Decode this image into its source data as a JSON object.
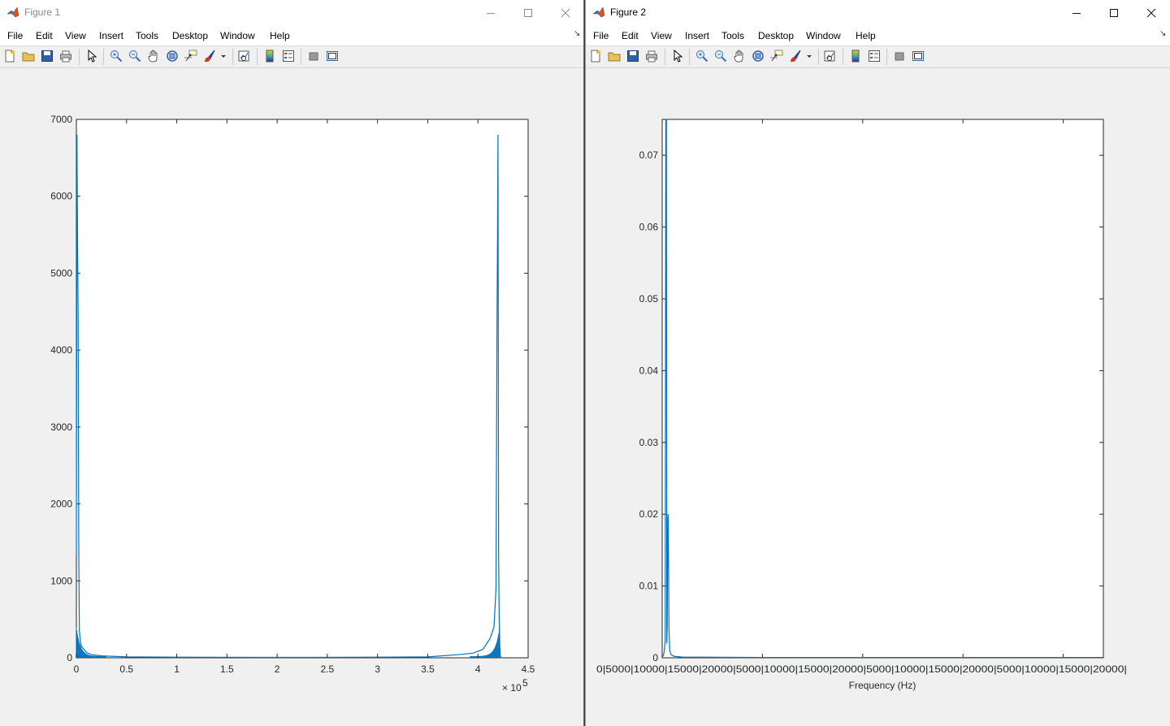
{
  "windows": [
    {
      "title": "Figure 1",
      "menu": [
        "File",
        "Edit",
        "View",
        "Insert",
        "Tools",
        "Desktop",
        "Window",
        "Help"
      ],
      "toolbar_icons": [
        "new-figure-icon",
        "open-file-icon",
        "save-icon",
        "print-icon",
        "edit-plot-icon",
        "zoom-in-icon",
        "zoom-out-icon",
        "pan-icon",
        "rotate-3d-icon",
        "data-cursor-icon",
        "brush-icon",
        "brush-dropdown-icon",
        "link-plot-icon",
        "colorbar-icon",
        "legend-icon",
        "hide-plot-tools-icon",
        "show-plot-tools-icon"
      ],
      "state": "inactive"
    },
    {
      "title": "Figure 2",
      "menu": [
        "File",
        "Edit",
        "View",
        "Insert",
        "Tools",
        "Desktop",
        "Window",
        "Help"
      ],
      "toolbar_icons": [
        "new-figure-icon",
        "open-file-icon",
        "save-icon",
        "print-icon",
        "edit-plot-icon",
        "zoom-in-icon",
        "zoom-out-icon",
        "pan-icon",
        "rotate-3d-icon",
        "data-cursor-icon",
        "brush-icon",
        "brush-dropdown-icon",
        "link-plot-icon",
        "colorbar-icon",
        "legend-icon",
        "hide-plot-tools-icon",
        "show-plot-tools-icon"
      ],
      "state": "active"
    }
  ],
  "colors": {
    "line": "#0072bd",
    "axes": "#262626",
    "figure_bg": "#f0f0f0"
  },
  "chart_data": [
    {
      "type": "line",
      "title": "",
      "xlabel": "",
      "ylabel": "",
      "xlim": [
        0,
        450000
      ],
      "ylim": [
        0,
        7000
      ],
      "x_tick_values": [
        0,
        50000,
        100000,
        150000,
        200000,
        250000,
        300000,
        350000,
        400000,
        450000
      ],
      "x_tick_labels": [
        "0",
        "0.5",
        "1",
        "1.5",
        "2",
        "2.5",
        "3",
        "3.5",
        "4",
        "4.5"
      ],
      "x_exponent_label": "× 10",
      "x_exponent_power": "5",
      "y_tick_values": [
        0,
        1000,
        2000,
        3000,
        4000,
        5000,
        6000,
        7000
      ],
      "y_tick_labels": [
        "0",
        "1000",
        "2000",
        "3000",
        "4000",
        "5000",
        "6000",
        "7000"
      ],
      "grid": false,
      "series": [
        {
          "x": [
            0,
            600,
            1200,
            1800,
            2400,
            3000,
            4000,
            5000,
            7000,
            10000,
            15000,
            25000,
            50000,
            100000,
            200000,
            300000,
            350000,
            380000,
            395000,
            405000,
            412000,
            416000,
            418000,
            419000,
            419500,
            420000,
            420600,
            421200,
            421800,
            422400,
            423200
          ],
          "y": [
            1320,
            6800,
            5400,
            4350,
            1300,
            350,
            210,
            150,
            120,
            70,
            40,
            25,
            12,
            8,
            5,
            8,
            12,
            40,
            60,
            110,
            250,
            400,
            900,
            4350,
            5400,
            6800,
            1320,
            500,
            150,
            20,
            0
          ]
        }
      ]
    },
    {
      "type": "line",
      "title": "",
      "xlabel": "Frequency (Hz)",
      "ylabel": "",
      "xlim": [
        0,
        440000
      ],
      "ylim": [
        0,
        0.075
      ],
      "x_tick_labels_text": "0|5000|10000|15000|20000|5000|10000|15000|20000|5000|10000|15000|20000|5000|10000|15000|20000|",
      "y_tick_values": [
        0,
        0.01,
        0.02,
        0.03,
        0.04,
        0.05,
        0.06,
        0.07
      ],
      "y_tick_labels": [
        "0",
        "0.01",
        "0.02",
        "0.03",
        "0.04",
        "0.05",
        "0.06",
        "0.07"
      ],
      "grid": false,
      "series": [
        {
          "x": [
            0,
            1000,
            2000,
            3000,
            3600,
            4200,
            4600,
            5000,
            5600,
            6000,
            6800,
            7500,
            9000,
            12000,
            20000,
            100000,
            200000,
            300000,
            400000,
            440000
          ],
          "y": [
            0,
            0.0003,
            0.0008,
            0.0025,
            0.075,
            0.075,
            0.002,
            0.004,
            0.0195,
            0.02,
            0.004,
            0.001,
            0.0004,
            0.0002,
            0.0001,
            5e-05,
            5e-05,
            5e-05,
            5e-05,
            5e-05
          ]
        }
      ]
    }
  ]
}
